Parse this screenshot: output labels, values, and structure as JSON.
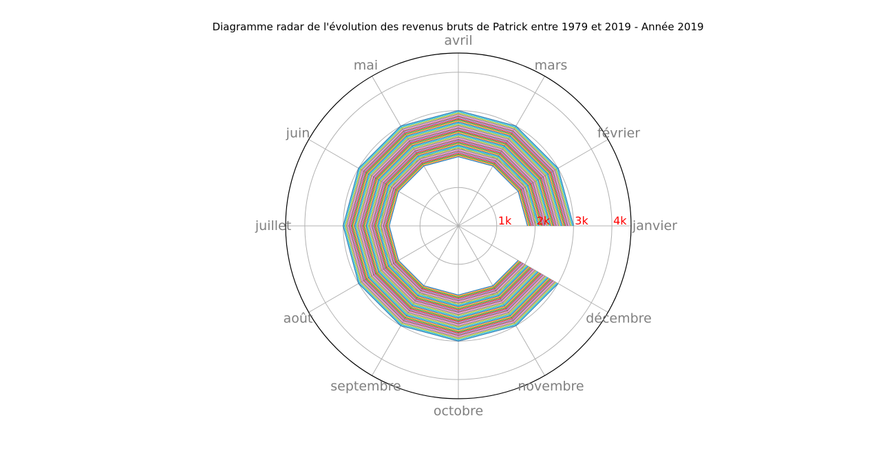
{
  "chart_data": {
    "type": "radar",
    "title": "Diagramme radar de l'évolution des revenus bruts de Patrick entre 1979 et 2019 - Année 2019",
    "categories": [
      "janvier",
      "février",
      "mars",
      "avril",
      "mai",
      "juin",
      "juillet",
      "août",
      "septembre",
      "octobre",
      "novembre",
      "décembre"
    ],
    "radial_ticks": [
      1000,
      2000,
      3000,
      4000
    ],
    "radial_tick_labels": [
      "1k",
      "2k",
      "3k",
      "4k"
    ],
    "rmax": 4500,
    "series_start": 1800,
    "series_end": 3000,
    "series_count": 41,
    "closing_segment": false,
    "grid": true,
    "colors": [
      "#1f77b4",
      "#ff7f0e",
      "#2ca02c",
      "#d62728",
      "#9467bd",
      "#8c564b",
      "#e377c2",
      "#7f7f7f",
      "#bcbd22",
      "#17becf"
    ],
    "tick_label_color": "#ff0000",
    "category_label_color": "#808080"
  }
}
